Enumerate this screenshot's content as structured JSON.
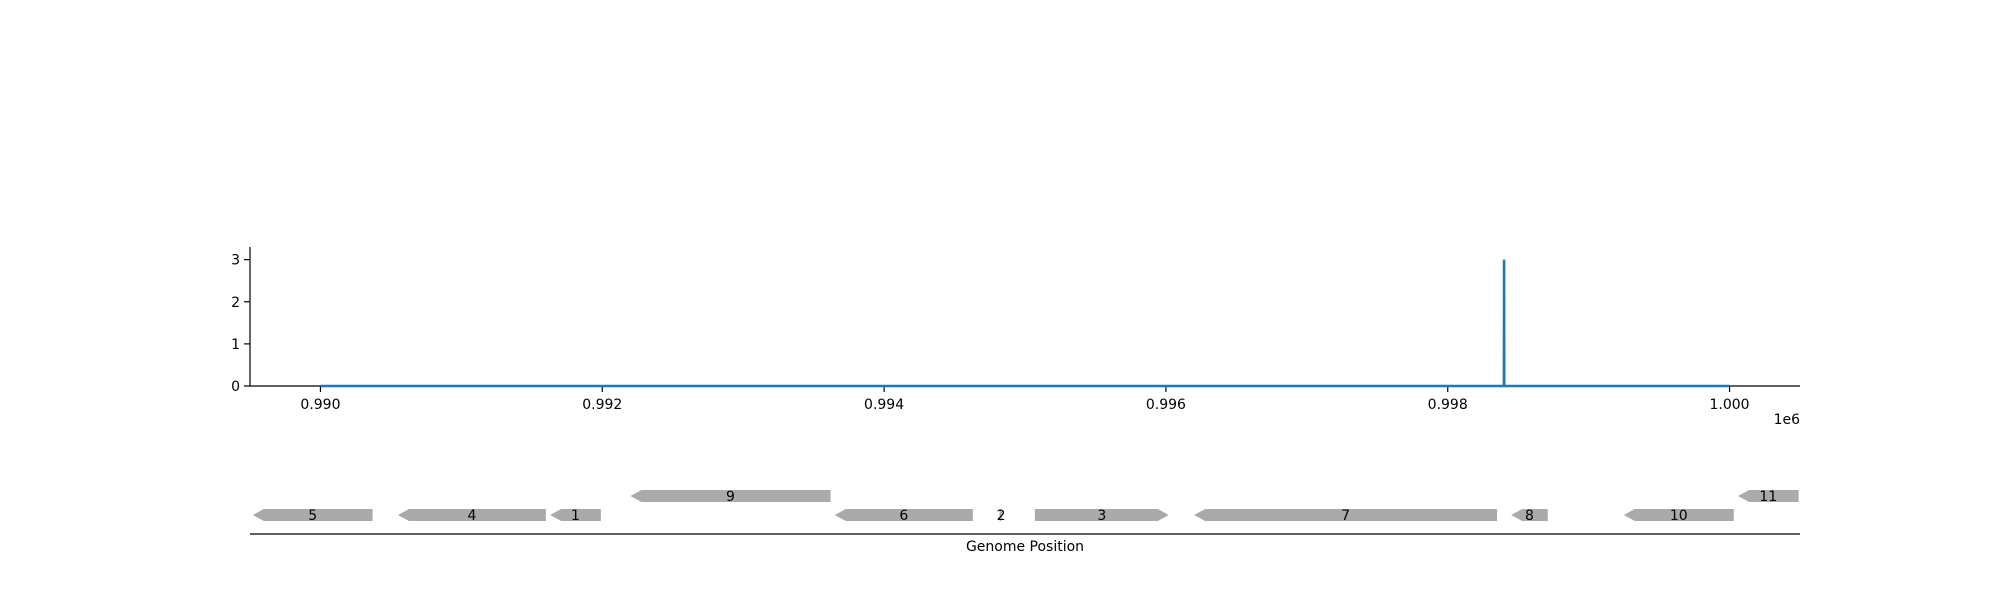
{
  "chart_data": [
    {
      "type": "line",
      "title": "",
      "xlabel": "",
      "ylabel": "",
      "x_offset_label": "1e6",
      "xlim": [
        989500,
        1000500
      ],
      "ylim": [
        0,
        3.3
      ],
      "xticks": [
        990000,
        992000,
        994000,
        996000,
        998000,
        1000000
      ],
      "xtick_labels": [
        "0.990",
        "0.992",
        "0.994",
        "0.996",
        "0.998",
        "1.000"
      ],
      "yticks": [
        0,
        1,
        2,
        3
      ],
      "ytick_labels": [
        "0",
        "1",
        "2",
        "3"
      ],
      "grid": false,
      "color": "#1f77b4",
      "series": [
        {
          "x": [
            990000,
            998399,
            998400,
            998401,
            1000000
          ],
          "y": [
            0,
            0,
            3,
            0,
            0
          ]
        }
      ]
    },
    {
      "type": "gene-track",
      "xlabel": "Genome Position",
      "xlim": [
        989500,
        1000500
      ],
      "feature_color": "#aaaaaa",
      "features": [
        {
          "label": "5",
          "start": 989520,
          "end": 990370,
          "strand": -1,
          "row": 0
        },
        {
          "label": "4",
          "start": 990550,
          "end": 991600,
          "strand": -1,
          "row": 0
        },
        {
          "label": "1",
          "start": 991630,
          "end": 991990,
          "strand": -1,
          "row": 0
        },
        {
          "label": "9",
          "start": 992200,
          "end": 993620,
          "strand": -1,
          "row": 1
        },
        {
          "label": "6",
          "start": 993650,
          "end": 994630,
          "strand": -1,
          "row": 0
        },
        {
          "label": "2",
          "start": 994820,
          "end": 994840,
          "strand": 1,
          "row": 0
        },
        {
          "label": "3",
          "start": 995070,
          "end": 996020,
          "strand": 1,
          "row": 0
        },
        {
          "label": "7",
          "start": 996200,
          "end": 998350,
          "strand": -1,
          "row": 0
        },
        {
          "label": "8",
          "start": 998450,
          "end": 998710,
          "strand": -1,
          "row": 0
        },
        {
          "label": "10",
          "start": 999250,
          "end": 1000030,
          "strand": -1,
          "row": 0
        },
        {
          "label": "11",
          "start": 1000060,
          "end": 1000490,
          "strand": -1,
          "row": 1
        }
      ]
    }
  ]
}
